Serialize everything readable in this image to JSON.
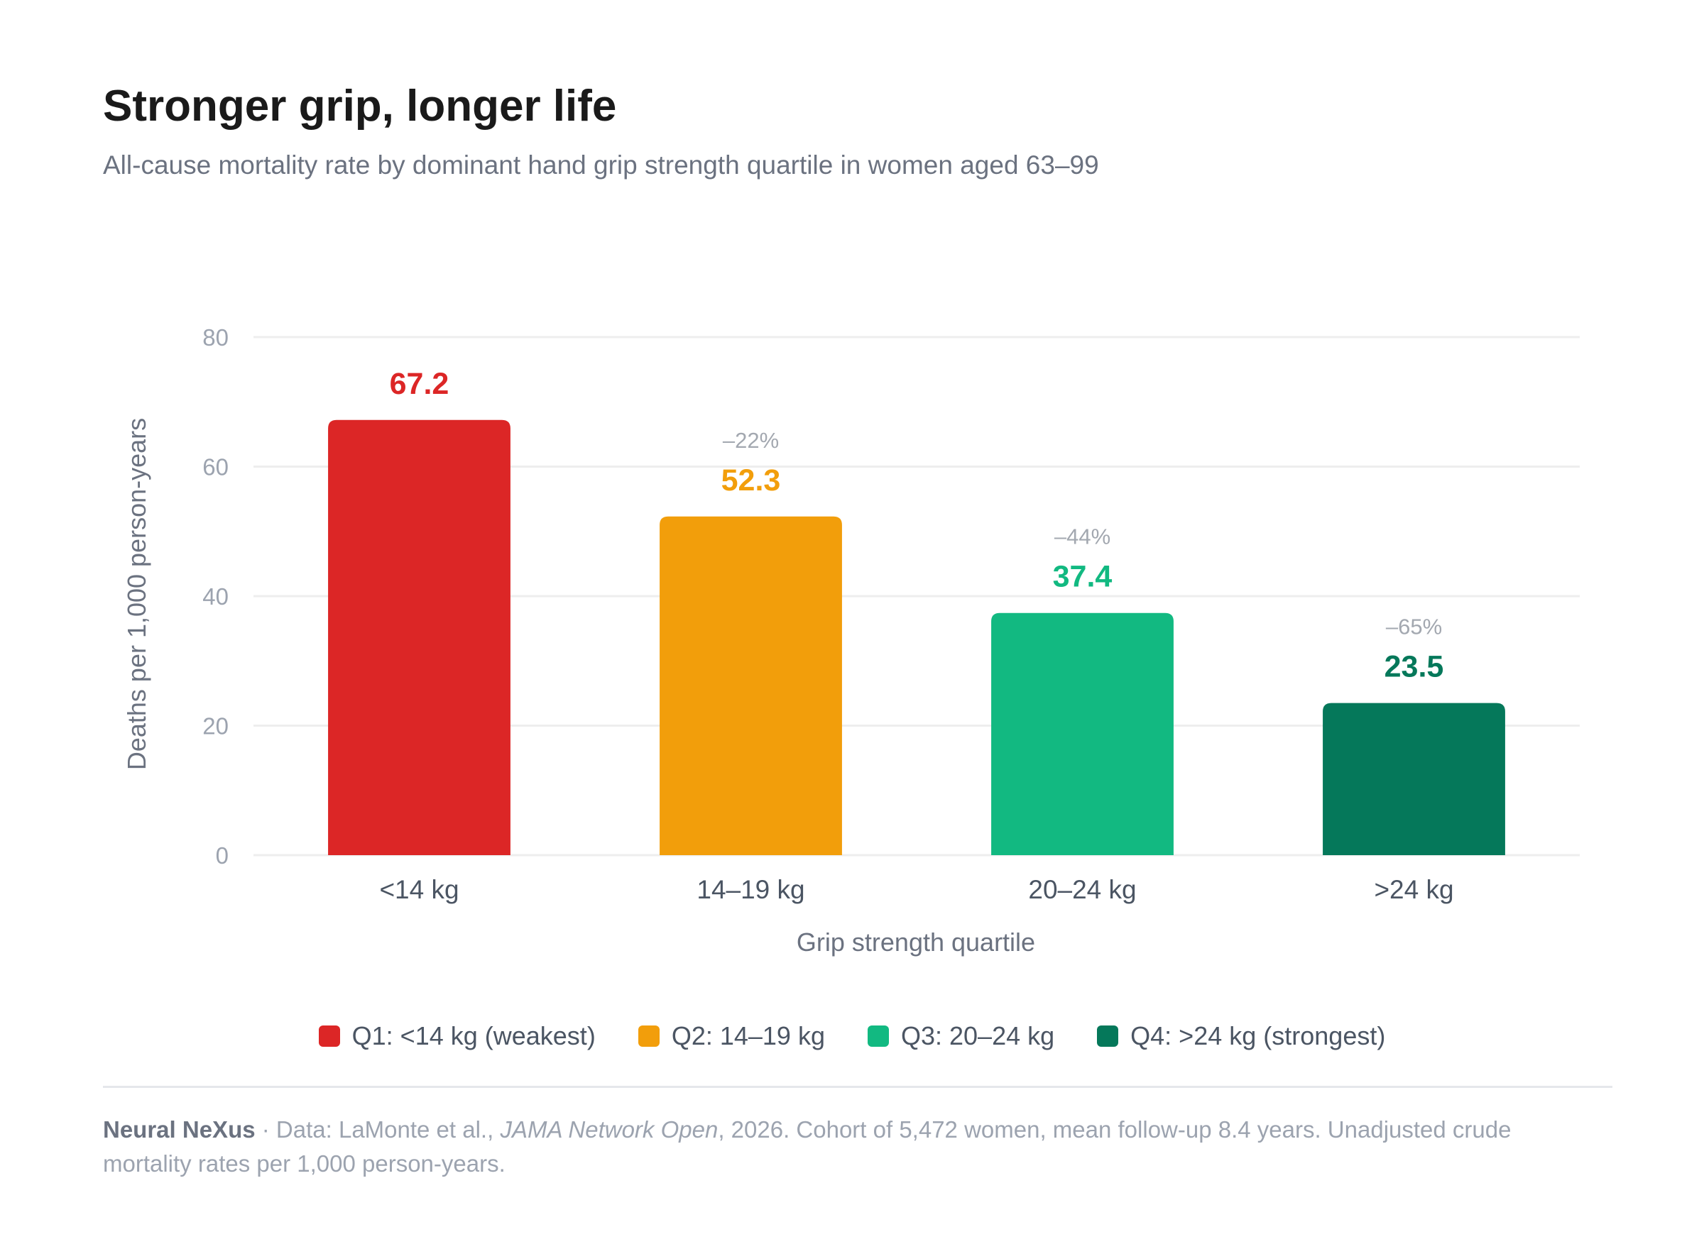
{
  "title": "Stronger grip, longer life",
  "subtitle": "All-cause mortality rate by dominant hand grip strength quartile in women aged 63–99",
  "chart_data": {
    "type": "bar",
    "categories": [
      "<14 kg",
      "14–19 kg",
      "20–24 kg",
      ">24 kg"
    ],
    "values": [
      67.2,
      52.3,
      37.4,
      23.5
    ],
    "value_labels": [
      "67.2",
      "52.3",
      "37.4",
      "23.5"
    ],
    "change_labels": [
      "",
      "–22%",
      "–44%",
      "–65%"
    ],
    "colors": [
      "#dc2626",
      "#f29e0b",
      "#12b981",
      "#05785a"
    ],
    "label_colors": [
      "#dc2626",
      "#f29e0b",
      "#12b981",
      "#05785a"
    ],
    "xlabel": "Grip strength quartile",
    "ylabel": "Deaths per 1,000 person-years",
    "ylim": [
      0,
      80
    ],
    "yticks": [
      0,
      20,
      40,
      60,
      80
    ],
    "grid": true,
    "legend_position": "bottom-center"
  },
  "legend": [
    {
      "label": "Q1: <14 kg (weakest)",
      "color": "#dc2626"
    },
    {
      "label": "Q2: 14–19 kg",
      "color": "#f29e0b"
    },
    {
      "label": "Q3: 20–24 kg",
      "color": "#12b981"
    },
    {
      "label": "Q4: >24 kg (strongest)",
      "color": "#05785a"
    }
  ],
  "footer": {
    "brand": "Neural NeXus",
    "separator": " · ",
    "source_prefix": "Data: LaMonte et al., ",
    "journal": "JAMA Network Open",
    "source_suffix": ", 2026. Cohort of 5,472 women, mean follow-up 8.4 years. Unadjusted crude mortality rates per 1,000 person-years."
  }
}
